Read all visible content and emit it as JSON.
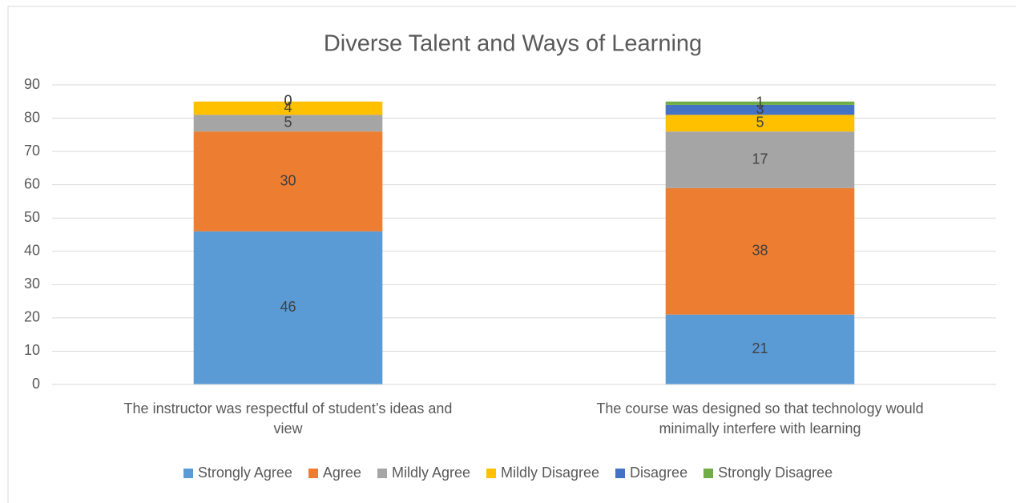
{
  "chart_data": {
    "type": "stacked_bar",
    "title": "Diverse Talent and Ways of Learning",
    "categories": [
      "The instructor was respectful of student’s ideas and view",
      "The course was designed so that technology would minimally interfere with learning"
    ],
    "series": [
      {
        "name": "Strongly Agree",
        "color": "#5b9bd5",
        "values": [
          46,
          21
        ]
      },
      {
        "name": "Agree",
        "color": "#ed7d31",
        "values": [
          30,
          38
        ]
      },
      {
        "name": "Mildly Agree",
        "color": "#a5a5a5",
        "values": [
          5,
          17
        ]
      },
      {
        "name": "Mildly Disagree",
        "color": "#ffc000",
        "values": [
          4,
          5
        ]
      },
      {
        "name": "Disagree",
        "color": "#4472c4",
        "values": [
          0,
          3
        ]
      },
      {
        "name": "Strongly Disagree",
        "color": "#70ad47",
        "values": [
          0,
          1
        ]
      }
    ],
    "ylim": [
      0,
      90
    ],
    "yticks": [
      0,
      10,
      20,
      30,
      40,
      50,
      60,
      70,
      80,
      90
    ],
    "grid": true,
    "legend": "bottom"
  }
}
